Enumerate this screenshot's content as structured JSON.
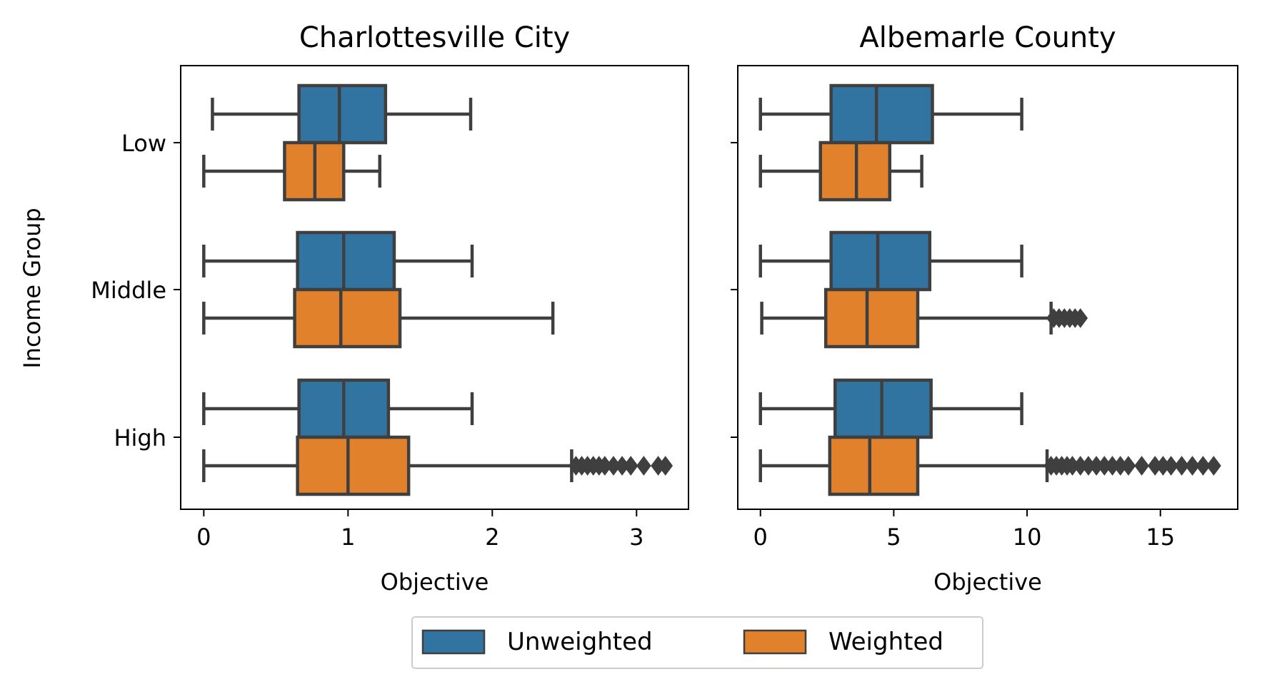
{
  "y_axis_label": "Income Group",
  "legend": [
    {
      "label": "Unweighted",
      "color": "#3274a1"
    },
    {
      "label": "Weighted",
      "color": "#e1812c"
    }
  ],
  "chart_data": [
    {
      "type": "box",
      "orientation": "horizontal",
      "title": "Charlottesville City",
      "xlabel": "Objective",
      "ylabel": "Income Group",
      "xlim": [
        -0.16,
        3.36
      ],
      "xticks": [
        0,
        1,
        2,
        3
      ],
      "categories": [
        "Low",
        "Middle",
        "High"
      ],
      "legend_position": "bottom-center",
      "series": [
        {
          "name": "Unweighted",
          "color": "#3274a1",
          "boxes": [
            {
              "whislo": 0.06,
              "q1": 0.66,
              "med": 0.94,
              "q3": 1.26,
              "whishi": 1.85,
              "fliers": []
            },
            {
              "whislo": 0.0,
              "q1": 0.65,
              "med": 0.97,
              "q3": 1.32,
              "whishi": 1.86,
              "fliers": []
            },
            {
              "whislo": 0.0,
              "q1": 0.66,
              "med": 0.97,
              "q3": 1.28,
              "whishi": 1.86,
              "fliers": []
            }
          ]
        },
        {
          "name": "Weighted",
          "color": "#e1812c",
          "boxes": [
            {
              "whislo": 0.0,
              "q1": 0.56,
              "med": 0.77,
              "q3": 0.97,
              "whishi": 1.22,
              "fliers": []
            },
            {
              "whislo": 0.0,
              "q1": 0.63,
              "med": 0.95,
              "q3": 1.36,
              "whishi": 2.42,
              "fliers": []
            },
            {
              "whislo": 0.0,
              "q1": 0.65,
              "med": 1.0,
              "q3": 1.42,
              "whishi": 2.55,
              "fliers": [
                2.58,
                2.62,
                2.66,
                2.7,
                2.74,
                2.78,
                2.84,
                2.9,
                2.96,
                3.05,
                3.15,
                3.2
              ]
            }
          ]
        }
      ]
    },
    {
      "type": "box",
      "orientation": "horizontal",
      "title": "Albemarle County",
      "xlabel": "Objective",
      "xlim": [
        -0.85,
        17.9
      ],
      "xticks": [
        0,
        5,
        10,
        15
      ],
      "categories": [
        "Low",
        "Middle",
        "High"
      ],
      "series": [
        {
          "name": "Unweighted",
          "color": "#3274a1",
          "boxes": [
            {
              "whislo": 0.0,
              "q1": 2.65,
              "med": 4.35,
              "q3": 6.45,
              "whishi": 9.8,
              "fliers": []
            },
            {
              "whislo": 0.0,
              "q1": 2.65,
              "med": 4.4,
              "q3": 6.35,
              "whishi": 9.8,
              "fliers": []
            },
            {
              "whislo": 0.0,
              "q1": 2.8,
              "med": 4.55,
              "q3": 6.4,
              "whishi": 9.8,
              "fliers": []
            }
          ]
        },
        {
          "name": "Weighted",
          "color": "#e1812c",
          "boxes": [
            {
              "whislo": 0.0,
              "q1": 2.25,
              "med": 3.6,
              "q3": 4.85,
              "whishi": 6.05,
              "fliers": []
            },
            {
              "whislo": 0.05,
              "q1": 2.45,
              "med": 4.0,
              "q3": 5.9,
              "whishi": 10.9,
              "fliers": [
                11.0,
                11.2,
                11.4,
                11.6,
                11.8,
                12.0
              ]
            },
            {
              "whislo": 0.0,
              "q1": 2.6,
              "med": 4.1,
              "q3": 5.9,
              "whishi": 10.75,
              "fliers": [
                10.9,
                11.1,
                11.3,
                11.5,
                11.7,
                12.0,
                12.3,
                12.6,
                12.9,
                13.2,
                13.5,
                13.8,
                14.3,
                14.8,
                15.1,
                15.4,
                15.8,
                16.2,
                16.6,
                17.0
              ]
            }
          ]
        }
      ]
    }
  ]
}
